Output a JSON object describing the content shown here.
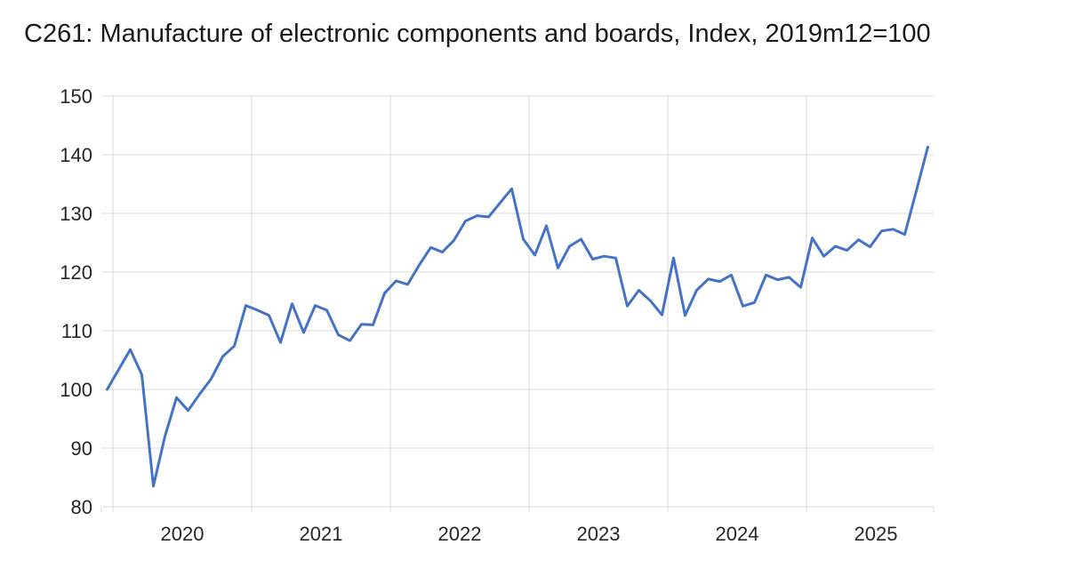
{
  "header": {
    "title": "C261: Manufacture of electronic components and boards, Index, 2019m12=100"
  },
  "colors": {
    "line": "#4472C4",
    "grid": "#D9D9D9",
    "text": "#262626",
    "background": "#FFFFFF"
  },
  "chart_data": {
    "type": "line",
    "title": "C261: Manufacture of electronic components and boards, Index, 2019m12=100",
    "xlabel": "",
    "ylabel": "",
    "ylim": [
      80,
      150
    ],
    "grid": true,
    "legend": "none",
    "y_axis": {
      "ticks": [
        80,
        90,
        100,
        110,
        120,
        130,
        140,
        150
      ]
    },
    "x_axis": {
      "tick_labels": [
        "2020",
        "2021",
        "2022",
        "2023",
        "2024",
        "2025"
      ]
    },
    "categories": [
      "2019M12",
      "2020M01",
      "2020M02",
      "2020M03",
      "2020M04",
      "2020M05",
      "2020M06",
      "2020M07",
      "2020M08",
      "2020M09",
      "2020M10",
      "2020M11",
      "2020M12",
      "2021M01",
      "2021M02",
      "2021M03",
      "2021M04",
      "2021M05",
      "2021M06",
      "2021M07",
      "2021M08",
      "2021M09",
      "2021M10",
      "2021M11",
      "2021M12",
      "2022M01",
      "2022M02",
      "2022M03",
      "2022M04",
      "2022M05",
      "2022M06",
      "2022M07",
      "2022M08",
      "2022M09",
      "2022M10",
      "2022M11",
      "2022M12",
      "2023M01",
      "2023M02",
      "2023M03",
      "2023M04",
      "2023M05",
      "2023M06",
      "2023M07",
      "2023M08",
      "2023M09",
      "2023M10",
      "2023M11",
      "2023M12",
      "2024M01",
      "2024M02",
      "2024M03",
      "2024M04",
      "2024M05",
      "2024M06",
      "2024M07",
      "2024M08",
      "2024M09",
      "2024M10",
      "2024M11",
      "2024M12",
      "2025M01",
      "2025M02",
      "2025M03",
      "2025M04",
      "2025M05",
      "2025M06",
      "2025M07",
      "2025M08",
      "2025M09",
      "2025M10",
      "2025M11"
    ],
    "values": [
      100,
      103.4,
      106.8,
      102.5,
      83.5,
      92,
      98.6,
      96.4,
      99.2,
      101.8,
      105.6,
      107.4,
      114.3,
      113.5,
      112.6,
      108,
      114.6,
      109.7,
      114.3,
      113.5,
      109.3,
      108.3,
      111.1,
      111,
      116.4,
      118.5,
      117.9,
      121.2,
      124.2,
      123.4,
      125.4,
      128.7,
      129.6,
      129.4,
      131.8,
      134.2,
      125.6,
      122.9,
      127.9,
      120.7,
      124.4,
      125.6,
      122.2,
      122.7,
      122.4,
      114.2,
      116.9,
      115.1,
      112.7,
      122.4,
      112.6,
      116.9,
      118.8,
      118.4,
      119.5,
      114.2,
      114.8,
      119.5,
      118.7,
      119.1,
      117.4,
      125.8,
      122.7,
      124.4,
      123.7,
      125.5,
      124.3,
      127,
      127.3,
      126.4,
      133.8,
      141.3
    ]
  }
}
